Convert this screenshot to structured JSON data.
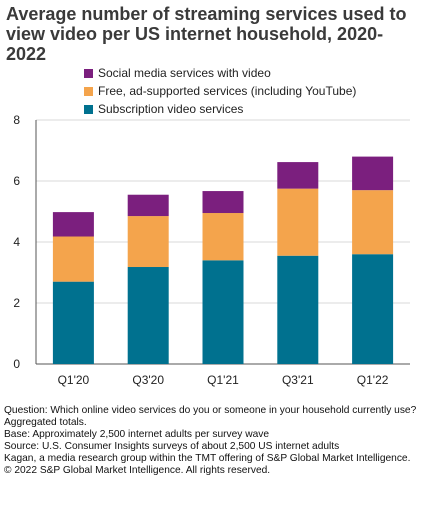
{
  "title": "Average number of streaming services used to view video per US internet household, 2020-2022",
  "chart_data": {
    "type": "bar",
    "stacked": true,
    "categories": [
      "Q1'20",
      "Q3'20",
      "Q1'21",
      "Q3'21",
      "Q1'22"
    ],
    "series": [
      {
        "name": "Subscription video services",
        "color": "#00718f",
        "values": [
          2.7,
          3.18,
          3.4,
          3.55,
          3.6
        ]
      },
      {
        "name": "Free, ad-supported services (including YouTube)",
        "color": "#f4a44c",
        "values": [
          1.48,
          1.67,
          1.55,
          2.2,
          2.1
        ]
      },
      {
        "name": "Social media services with video",
        "color": "#7b1f7e",
        "values": [
          0.8,
          0.7,
          0.72,
          0.87,
          1.1
        ]
      }
    ],
    "ylim": [
      0,
      8
    ],
    "yticks": [
      0,
      2,
      4,
      6,
      8
    ],
    "grid": true,
    "legend_position": "top-left"
  },
  "legend": [
    {
      "label": "Social media services with video",
      "color": "#7b1f7e"
    },
    {
      "label": "Free, ad-supported services (including YouTube)",
      "color": "#f4a44c"
    },
    {
      "label": "Subscription video services",
      "color": "#00718f"
    }
  ],
  "notes": {
    "question": "Question: Which online video services do you or someone in your household currently use? Aggregated totals.",
    "base": "Base: Approximately 2,500 internet adults per survey wave",
    "source": "Source: U.S. Consumer Insights surveys of about 2,500 US internet adults",
    "kagan": "Kagan, a media research group within the TMT offering of S&P Global Market Intelligence.",
    "copyright": "© 2022 S&P Global Market Intelligence. All rights reserved."
  }
}
